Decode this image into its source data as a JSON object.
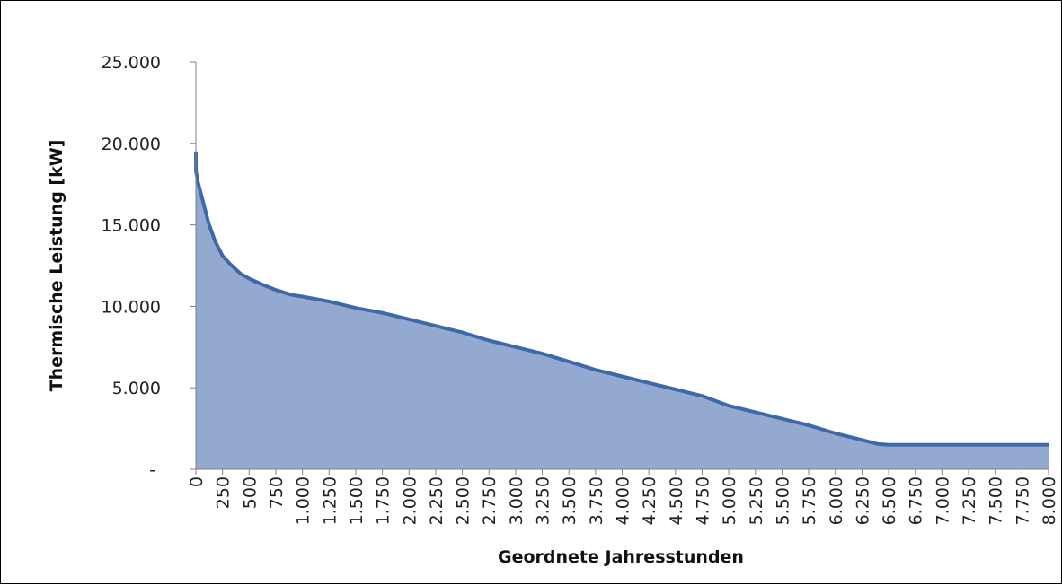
{
  "chart_data": {
    "type": "area",
    "title": "",
    "xlabel": "Geordnete Jahresstunden",
    "ylabel": "Thermische Leistung [kW]",
    "xlim": [
      0,
      8000
    ],
    "ylim": [
      0,
      25000
    ],
    "x_ticks": [
      0,
      250,
      500,
      750,
      1000,
      1250,
      1500,
      1750,
      2000,
      2250,
      2500,
      2750,
      3000,
      3250,
      3500,
      3750,
      4000,
      4250,
      4500,
      4750,
      5000,
      5250,
      5500,
      5750,
      6000,
      6250,
      6500,
      6750,
      7000,
      7250,
      7500,
      7750,
      8000
    ],
    "x_tick_labels": [
      "0",
      "250",
      "500",
      "750",
      "1.000",
      "1.250",
      "1.500",
      "1.750",
      "2.000",
      "2.250",
      "2.500",
      "2.750",
      "3.000",
      "3.250",
      "3.500",
      "3.750",
      "4.000",
      "4.250",
      "4.500",
      "4.750",
      "5.000",
      "5.250",
      "5.500",
      "5.750",
      "6.000",
      "6.250",
      "6.500",
      "6.750",
      "7.000",
      "7.250",
      "7.500",
      "7.750",
      "8.000"
    ],
    "y_ticks": [
      0,
      5000,
      10000,
      15000,
      20000,
      25000
    ],
    "y_tick_labels": [
      "-",
      "5.000",
      "10.000",
      "15.000",
      "20.000",
      "25.000"
    ],
    "grid": false,
    "legend": "none",
    "series": [
      {
        "x": [
          0,
          1,
          20,
          60,
          120,
          180,
          250,
          320,
          420,
          500,
          600,
          750,
          900,
          1000,
          1250,
          1500,
          1750,
          2000,
          2250,
          2500,
          2750,
          3000,
          3250,
          3500,
          3750,
          4000,
          4250,
          4500,
          4750,
          5000,
          5250,
          5500,
          5750,
          6000,
          6250,
          6400,
          6500,
          6750,
          7000,
          7250,
          7500,
          7750,
          8000
        ],
        "y": [
          19500,
          18300,
          17600,
          16600,
          15100,
          14000,
          13100,
          12600,
          12000,
          11700,
          11400,
          11000,
          10700,
          10600,
          10300,
          9900,
          9600,
          9200,
          8800,
          8400,
          7900,
          7500,
          7100,
          6600,
          6100,
          5700,
          5300,
          4900,
          4500,
          3900,
          3500,
          3100,
          2700,
          2200,
          1800,
          1550,
          1500,
          1500,
          1500,
          1500,
          1500,
          1500,
          1500
        ],
        "line_color": "#3e69a8",
        "fill_color": "#94a9d0"
      }
    ]
  }
}
